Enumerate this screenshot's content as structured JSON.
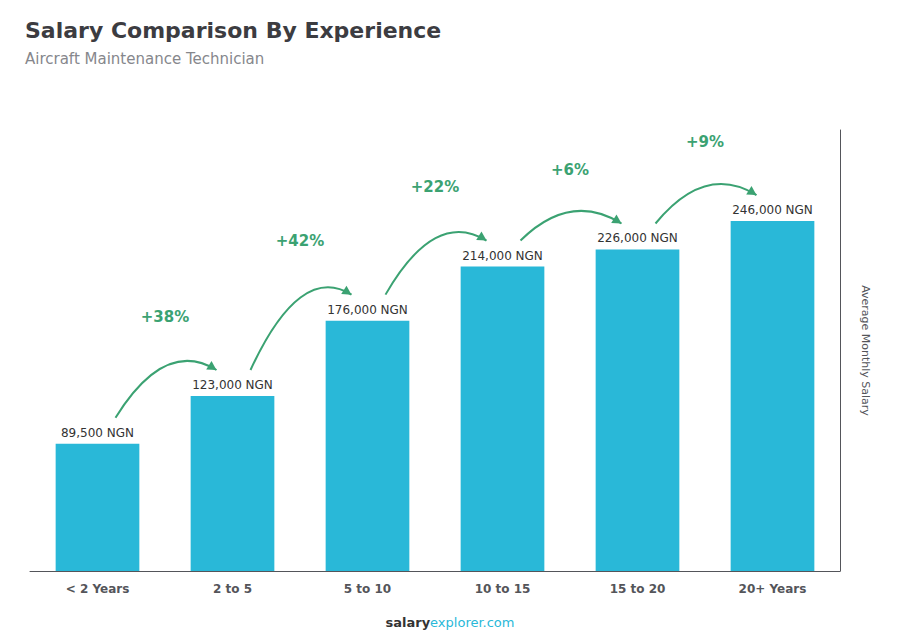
{
  "chart_data": {
    "type": "bar",
    "title": "Salary Comparison By Experience",
    "subtitle": "Aircraft Maintenance Technician",
    "ylabel": "Average Monthly Salary",
    "categories": [
      "< 2 Years",
      "2 to 5",
      "5 to 10",
      "10 to 15",
      "15 to 20",
      "20+ Years"
    ],
    "values": [
      89500,
      123000,
      176000,
      214000,
      226000,
      246000
    ],
    "value_labels": [
      "89,500 NGN",
      "123,000 NGN",
      "176,000 NGN",
      "214,000 NGN",
      "226,000 NGN",
      "246,000 NGN"
    ],
    "color": "#29b8d8",
    "ylim": [
      0,
      310000
    ],
    "grid": false,
    "data_labels": true,
    "tick_labels": "x",
    "annotations": [
      "+38%",
      "+42%",
      "+22%",
      "+6%",
      "+9%"
    ],
    "footer": [
      "salary",
      "explorer.com"
    ]
  }
}
